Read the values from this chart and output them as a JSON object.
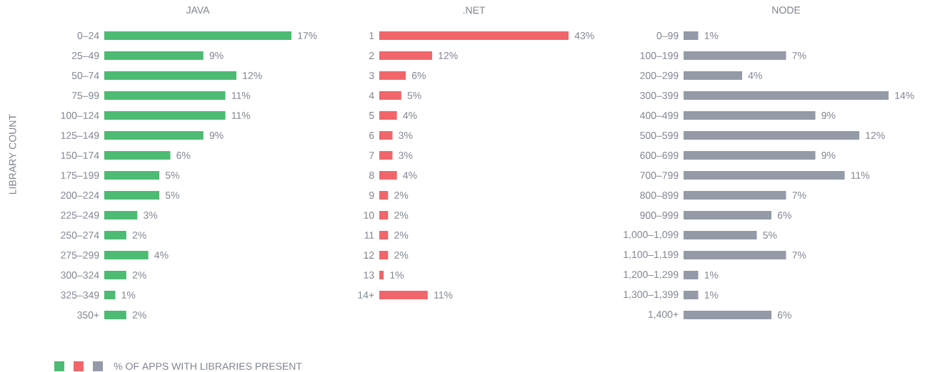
{
  "chart_data": [
    {
      "type": "bar",
      "orientation": "horizontal",
      "title": "JAVA",
      "ylabel": "LIBRARY COUNT",
      "color": "#4dbb73",
      "categories": [
        "0–24",
        "25–49",
        "50–74",
        "75–99",
        "100–124",
        "125–149",
        "150–174",
        "175–199",
        "200–224",
        "225–249",
        "250–274",
        "275–299",
        "300–324",
        "325–349",
        "350+"
      ],
      "values": [
        17,
        9,
        12,
        11,
        11,
        9,
        6,
        5,
        5,
        3,
        2,
        4,
        2,
        1,
        2
      ],
      "value_labels": [
        "17%",
        "9%",
        "12%",
        "11%",
        "11%",
        "9%",
        "6%",
        "5%",
        "5%",
        "3%",
        "2%",
        "4%",
        "2%",
        "1%",
        "2%"
      ],
      "annotations": [
        "% OF APPS WITH LIBRARIES PRESENT"
      ]
    },
    {
      "type": "bar",
      "orientation": "horizontal",
      "title": ".NET",
      "color": "#f0666a",
      "categories": [
        "1",
        "2",
        "3",
        "4",
        "5",
        "6",
        "7",
        "8",
        "9",
        "10",
        "11",
        "12",
        "13",
        "14+"
      ],
      "values": [
        43,
        12,
        6,
        5,
        4,
        3,
        3,
        4,
        2,
        2,
        2,
        2,
        1,
        11
      ],
      "value_labels": [
        "43%",
        "12%",
        "6%",
        "5%",
        "4%",
        "3%",
        "3%",
        "4%",
        "2%",
        "2%",
        "2%",
        "2%",
        "1%",
        "11%"
      ]
    },
    {
      "type": "bar",
      "orientation": "horizontal",
      "title": "NODE",
      "color": "#949aa7",
      "categories": [
        "0–99",
        "100–199",
        "200–299",
        "300–399",
        "400–499",
        "500–599",
        "600–699",
        "700–799",
        "800–899",
        "900–999",
        "1,000–1,099",
        "1,100–1,199",
        "1,200–1,299",
        "1,300–1,399",
        "1,400+"
      ],
      "values": [
        1,
        7,
        4,
        14,
        9,
        12,
        9,
        11,
        7,
        6,
        5,
        7,
        1,
        1,
        6
      ],
      "value_labels": [
        "1%",
        "7%",
        "4%",
        "14%",
        "9%",
        "12%",
        "9%",
        "11%",
        "7%",
        "6%",
        "5%",
        "7%",
        "1%",
        "1%",
        "6%"
      ]
    }
  ]
}
